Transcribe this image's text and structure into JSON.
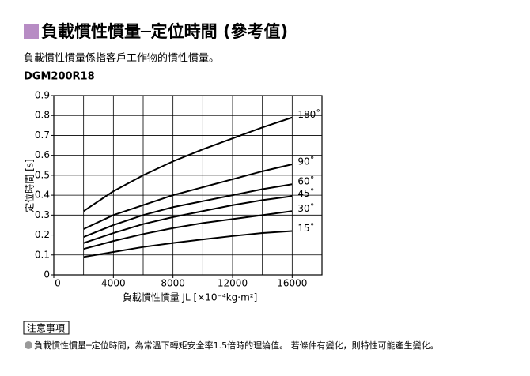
{
  "chart_data": {
    "type": "line",
    "title": "負載慣性慣量─定位時間 (參考值)",
    "subtitle": "負載慣性慣量係指客戶工作物的慣性慣量。",
    "model": "DGM200R18",
    "x_label": "負載慣性慣量 JL [×10⁻⁴kg·m²]",
    "y_label": "定位時間 [s]",
    "x": [
      2000,
      4000,
      6000,
      8000,
      10000,
      12000,
      14000,
      16000
    ],
    "series": [
      {
        "name": "180˚",
        "color": "#000000",
        "values": [
          0.32,
          0.42,
          0.5,
          0.57,
          0.63,
          0.685,
          0.74,
          0.79
        ]
      },
      {
        "name": "90˚",
        "color": "#000000",
        "values": [
          0.23,
          0.3,
          0.35,
          0.4,
          0.44,
          0.48,
          0.52,
          0.555
        ]
      },
      {
        "name": "60˚",
        "color": "#000000",
        "values": [
          0.19,
          0.25,
          0.3,
          0.34,
          0.37,
          0.4,
          0.43,
          0.455
        ]
      },
      {
        "name": "45˚",
        "color": "#000000",
        "values": [
          0.16,
          0.21,
          0.255,
          0.29,
          0.32,
          0.35,
          0.375,
          0.395
        ]
      },
      {
        "name": "30˚",
        "color": "#000000",
        "values": [
          0.13,
          0.17,
          0.205,
          0.235,
          0.26,
          0.28,
          0.3,
          0.32
        ]
      },
      {
        "name": "15˚",
        "color": "#000000",
        "values": [
          0.09,
          0.115,
          0.14,
          0.16,
          0.178,
          0.195,
          0.21,
          0.22
        ]
      }
    ],
    "xlim": [
      0,
      18000
    ],
    "xticks": [
      0,
      4000,
      8000,
      12000,
      16000
    ],
    "xgrid": [
      2000,
      4000,
      6000,
      8000,
      10000,
      12000,
      14000,
      16000
    ],
    "ylim": [
      0,
      0.9
    ],
    "yticks": [
      0,
      0.1,
      0.2,
      0.3,
      0.4,
      0.5,
      0.6,
      0.7,
      0.8,
      0.9
    ],
    "grid": true
  },
  "note": {
    "heading": "注意事項",
    "text": "負載慣性慣量─定位時間，為常溫下轉矩安全率1.5倍時的理論值。 若條件有變化，則特性可能產生變化。"
  }
}
